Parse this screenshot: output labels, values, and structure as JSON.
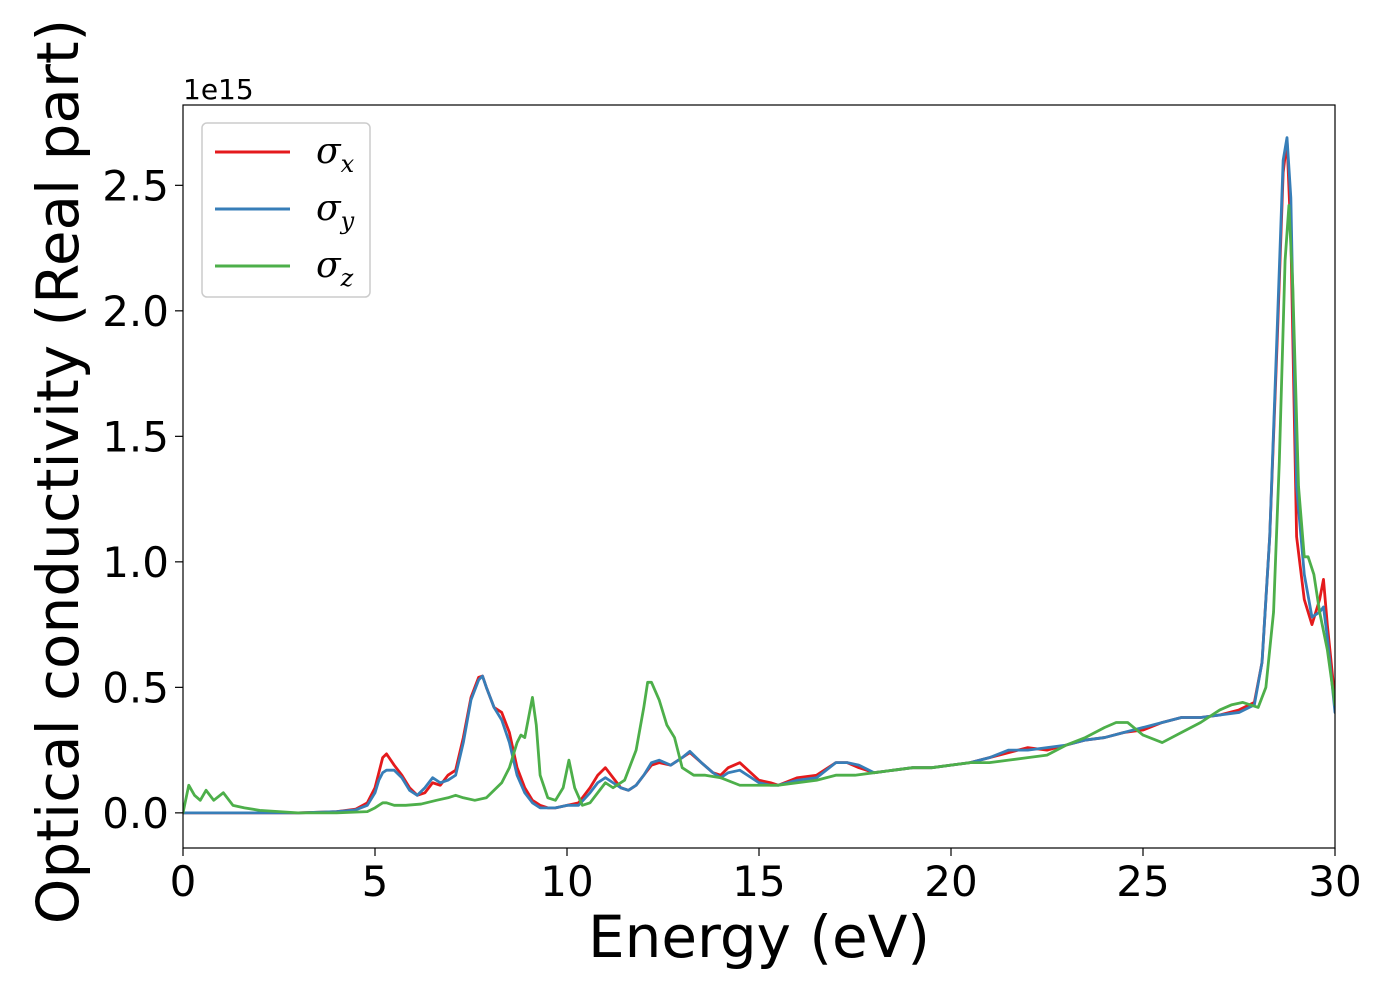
{
  "chart_data": {
    "type": "line",
    "title": "",
    "xlabel": "Energy (eV)",
    "ylabel": "Optical conductivity (Real part)",
    "y_offset_text": "1e15",
    "xlim": [
      0,
      30
    ],
    "ylim": [
      -0.14,
      2.82
    ],
    "xticks": [
      0,
      5,
      10,
      15,
      20,
      25,
      30
    ],
    "xtick_labels": [
      "0",
      "5",
      "10",
      "15",
      "20",
      "25",
      "30"
    ],
    "yticks": [
      0.0,
      0.5,
      1.0,
      1.5,
      2.0,
      2.5
    ],
    "ytick_labels": [
      "0.0",
      "0.5",
      "1.0",
      "1.5",
      "2.0",
      "2.5"
    ],
    "grid": false,
    "legend_position": "top-left",
    "series": [
      {
        "name": "σx",
        "legend_symbol": "σ",
        "legend_sub": "x",
        "color": "#e41a1c",
        "x": [
          0,
          0.5,
          1,
          2,
          3,
          4,
          4.5,
          4.8,
          5.0,
          5.1,
          5.2,
          5.3,
          5.5,
          5.7,
          5.9,
          6.1,
          6.3,
          6.5,
          6.7,
          6.9,
          7.1,
          7.3,
          7.5,
          7.7,
          7.8,
          7.9,
          8.1,
          8.3,
          8.5,
          8.7,
          8.9,
          9.1,
          9.3,
          9.5,
          9.7,
          10.0,
          10.3,
          10.6,
          10.8,
          11.0,
          11.2,
          11.4,
          11.6,
          11.8,
          12.0,
          12.2,
          12.4,
          12.7,
          13.0,
          13.2,
          13.5,
          13.8,
          14.0,
          14.2,
          14.5,
          15.0,
          15.3,
          15.5,
          16.0,
          16.5,
          17.0,
          17.3,
          17.6,
          18.0,
          18.5,
          19.0,
          19.5,
          20.0,
          20.5,
          21.0,
          21.5,
          22.0,
          22.5,
          23.0,
          23.5,
          24.0,
          24.5,
          25.0,
          25.5,
          26.0,
          26.5,
          27.0,
          27.5,
          27.9,
          28.1,
          28.3,
          28.5,
          28.65,
          28.75,
          28.85,
          29.0,
          29.2,
          29.4,
          29.6,
          29.7,
          29.8,
          30.0
        ],
        "y": [
          0.0,
          0.0,
          0.0,
          0.0,
          0.0,
          0.005,
          0.015,
          0.04,
          0.1,
          0.16,
          0.22,
          0.235,
          0.19,
          0.15,
          0.1,
          0.07,
          0.08,
          0.12,
          0.11,
          0.15,
          0.17,
          0.3,
          0.46,
          0.54,
          0.545,
          0.5,
          0.42,
          0.4,
          0.32,
          0.18,
          0.1,
          0.05,
          0.03,
          0.02,
          0.02,
          0.03,
          0.04,
          0.1,
          0.15,
          0.18,
          0.14,
          0.1,
          0.09,
          0.11,
          0.15,
          0.19,
          0.2,
          0.19,
          0.22,
          0.24,
          0.2,
          0.16,
          0.15,
          0.18,
          0.2,
          0.13,
          0.12,
          0.11,
          0.14,
          0.15,
          0.2,
          0.2,
          0.18,
          0.16,
          0.17,
          0.18,
          0.18,
          0.19,
          0.2,
          0.22,
          0.24,
          0.26,
          0.25,
          0.27,
          0.29,
          0.3,
          0.32,
          0.33,
          0.36,
          0.38,
          0.38,
          0.39,
          0.41,
          0.44,
          0.6,
          1.1,
          1.9,
          2.55,
          2.68,
          2.3,
          1.1,
          0.85,
          0.75,
          0.85,
          0.93,
          0.75,
          0.45
        ]
      },
      {
        "name": "σy",
        "legend_symbol": "σ",
        "legend_sub": "y",
        "color": "#377eb8",
        "x": [
          0,
          0.5,
          1,
          2,
          3,
          4,
          4.5,
          4.8,
          5.0,
          5.1,
          5.2,
          5.3,
          5.5,
          5.7,
          5.9,
          6.1,
          6.3,
          6.5,
          6.7,
          6.9,
          7.1,
          7.3,
          7.5,
          7.7,
          7.8,
          7.9,
          8.1,
          8.3,
          8.5,
          8.7,
          8.9,
          9.1,
          9.3,
          9.5,
          9.7,
          10.0,
          10.3,
          10.6,
          10.8,
          11.0,
          11.2,
          11.4,
          11.6,
          11.8,
          12.0,
          12.2,
          12.4,
          12.7,
          13.0,
          13.2,
          13.5,
          13.8,
          14.0,
          14.2,
          14.5,
          15.0,
          15.3,
          15.5,
          16.0,
          16.5,
          17.0,
          17.3,
          17.6,
          18.0,
          18.5,
          19.0,
          19.5,
          20.0,
          20.5,
          21.0,
          21.5,
          22.0,
          22.5,
          23.0,
          23.5,
          24.0,
          24.5,
          25.0,
          25.5,
          26.0,
          26.5,
          27.0,
          27.5,
          27.9,
          28.1,
          28.3,
          28.5,
          28.65,
          28.75,
          28.85,
          29.0,
          29.2,
          29.4,
          29.6,
          29.7,
          29.8,
          30.0
        ],
        "y": [
          0.0,
          0.0,
          0.0,
          0.0,
          0.0,
          0.005,
          0.012,
          0.03,
          0.08,
          0.13,
          0.16,
          0.17,
          0.17,
          0.14,
          0.09,
          0.07,
          0.1,
          0.14,
          0.12,
          0.13,
          0.15,
          0.28,
          0.45,
          0.53,
          0.545,
          0.5,
          0.42,
          0.37,
          0.28,
          0.15,
          0.08,
          0.04,
          0.02,
          0.02,
          0.02,
          0.03,
          0.03,
          0.08,
          0.12,
          0.14,
          0.12,
          0.1,
          0.09,
          0.11,
          0.15,
          0.2,
          0.21,
          0.19,
          0.22,
          0.245,
          0.2,
          0.16,
          0.14,
          0.16,
          0.17,
          0.12,
          0.11,
          0.11,
          0.13,
          0.14,
          0.2,
          0.2,
          0.19,
          0.16,
          0.17,
          0.18,
          0.18,
          0.19,
          0.2,
          0.22,
          0.25,
          0.25,
          0.26,
          0.27,
          0.29,
          0.3,
          0.32,
          0.34,
          0.36,
          0.38,
          0.38,
          0.39,
          0.4,
          0.43,
          0.6,
          1.1,
          1.95,
          2.6,
          2.69,
          2.45,
          1.3,
          0.95,
          0.78,
          0.8,
          0.82,
          0.7,
          0.4
        ]
      },
      {
        "name": "σz",
        "legend_symbol": "σ",
        "legend_sub": "z",
        "color": "#4daf4a",
        "x": [
          0,
          0.15,
          0.3,
          0.45,
          0.6,
          0.8,
          1.05,
          1.3,
          1.6,
          2.0,
          3.0,
          4.0,
          4.8,
          5.0,
          5.2,
          5.3,
          5.5,
          5.8,
          6.2,
          6.6,
          6.9,
          7.1,
          7.3,
          7.6,
          7.9,
          8.1,
          8.3,
          8.5,
          8.7,
          8.8,
          8.9,
          9.0,
          9.1,
          9.2,
          9.3,
          9.5,
          9.7,
          9.9,
          10.05,
          10.2,
          10.4,
          10.6,
          10.8,
          11.0,
          11.2,
          11.5,
          11.8,
          12.0,
          12.1,
          12.2,
          12.4,
          12.6,
          12.8,
          13.0,
          13.3,
          13.6,
          14.0,
          14.5,
          15.0,
          15.5,
          16.0,
          16.5,
          17.0,
          17.5,
          18.0,
          18.5,
          19.0,
          19.5,
          20.0,
          20.5,
          21.0,
          21.5,
          22.0,
          22.5,
          23.0,
          23.5,
          24.0,
          24.3,
          24.6,
          25.0,
          25.5,
          26.0,
          26.5,
          27.0,
          27.3,
          27.6,
          28.0,
          28.2,
          28.4,
          28.55,
          28.7,
          28.8,
          28.9,
          29.05,
          29.2,
          29.3,
          29.45,
          29.6,
          29.8,
          30.0
        ],
        "y": [
          0.0,
          0.11,
          0.07,
          0.05,
          0.09,
          0.05,
          0.08,
          0.03,
          0.02,
          0.01,
          0.0,
          0.0,
          0.005,
          0.02,
          0.04,
          0.04,
          0.03,
          0.03,
          0.035,
          0.05,
          0.06,
          0.07,
          0.06,
          0.05,
          0.06,
          0.09,
          0.12,
          0.18,
          0.28,
          0.31,
          0.3,
          0.38,
          0.46,
          0.35,
          0.15,
          0.06,
          0.05,
          0.1,
          0.21,
          0.1,
          0.03,
          0.04,
          0.08,
          0.12,
          0.1,
          0.13,
          0.25,
          0.42,
          0.52,
          0.52,
          0.45,
          0.35,
          0.3,
          0.18,
          0.15,
          0.15,
          0.14,
          0.11,
          0.11,
          0.11,
          0.12,
          0.13,
          0.15,
          0.15,
          0.16,
          0.17,
          0.18,
          0.18,
          0.19,
          0.2,
          0.2,
          0.21,
          0.22,
          0.23,
          0.27,
          0.3,
          0.34,
          0.36,
          0.36,
          0.31,
          0.28,
          0.32,
          0.36,
          0.41,
          0.43,
          0.44,
          0.42,
          0.5,
          0.8,
          1.4,
          2.2,
          2.42,
          2.1,
          1.3,
          1.02,
          1.02,
          0.95,
          0.8,
          0.65,
          0.43
        ]
      }
    ]
  }
}
